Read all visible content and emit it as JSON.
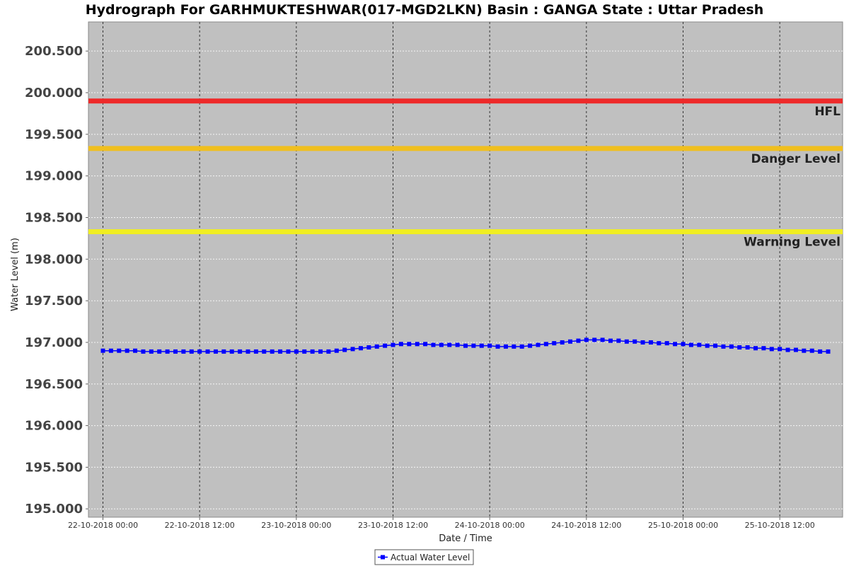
{
  "chart_data": {
    "type": "line",
    "title": "Hydrograph For GARHMUKTESHWAR(017-MGD2LKN) Basin : GANGA State : Uttar Pradesh",
    "xlabel": "Date / Time",
    "ylabel": "Water Level (m)",
    "ylim": [
      194.9,
      200.85
    ],
    "yticks": [
      195.0,
      195.5,
      196.0,
      196.5,
      197.0,
      197.5,
      198.0,
      198.5,
      199.0,
      199.5,
      200.0,
      200.5
    ],
    "ytick_labels": [
      "195.000",
      "195.500",
      "196.000",
      "196.500",
      "197.000",
      "197.500",
      "198.000",
      "198.500",
      "199.000",
      "199.500",
      "200.000",
      "200.500"
    ],
    "xlim_hours": [
      -1.8,
      91.8
    ],
    "x_start": "22-10-2018 00:00",
    "xticks_hours": [
      0,
      12,
      24,
      36,
      48,
      60,
      72,
      84
    ],
    "xtick_labels": [
      "22-10-2018 00:00",
      "22-10-2018 12:00",
      "23-10-2018 00:00",
      "23-10-2018 12:00",
      "24-10-2018 00:00",
      "24-10-2018 12:00",
      "25-10-2018 00:00",
      "25-10-2018 12:00"
    ],
    "grid": true,
    "background": "#c0c0c0",
    "reference_lines": [
      {
        "name": "HFL",
        "value": 199.9,
        "color": "#ee2a2a"
      },
      {
        "name": "Danger Level",
        "value": 199.33,
        "color": "#f0bf1e"
      },
      {
        "name": "Warning Level",
        "value": 198.33,
        "color": "#f0ee22"
      }
    ],
    "series": [
      {
        "name": "Actual Water Level",
        "color": "#0000ff",
        "x_hours": [
          0,
          1,
          2,
          3,
          4,
          5,
          6,
          7,
          8,
          9,
          10,
          11,
          12,
          13,
          14,
          15,
          16,
          17,
          18,
          19,
          20,
          21,
          22,
          23,
          24,
          25,
          26,
          27,
          28,
          29,
          30,
          31,
          32,
          33,
          34,
          35,
          36,
          37,
          38,
          39,
          40,
          41,
          42,
          43,
          44,
          45,
          46,
          47,
          48,
          49,
          50,
          51,
          52,
          53,
          54,
          55,
          56,
          57,
          58,
          59,
          60,
          61,
          62,
          63,
          64,
          65,
          66,
          67,
          68,
          69,
          70,
          71,
          72,
          73,
          74,
          75,
          76,
          77,
          78,
          79,
          80,
          81,
          82,
          83,
          84,
          85,
          86,
          87,
          88,
          89,
          90
        ],
        "values": [
          196.9,
          196.9,
          196.9,
          196.9,
          196.9,
          196.89,
          196.89,
          196.89,
          196.89,
          196.89,
          196.89,
          196.89,
          196.89,
          196.89,
          196.89,
          196.89,
          196.89,
          196.89,
          196.89,
          196.89,
          196.89,
          196.89,
          196.89,
          196.89,
          196.89,
          196.89,
          196.89,
          196.89,
          196.89,
          196.9,
          196.91,
          196.92,
          196.93,
          196.94,
          196.95,
          196.96,
          196.97,
          196.98,
          196.98,
          196.98,
          196.98,
          196.97,
          196.97,
          196.97,
          196.97,
          196.96,
          196.96,
          196.96,
          196.96,
          196.95,
          196.95,
          196.95,
          196.95,
          196.96,
          196.97,
          196.98,
          196.99,
          197.0,
          197.01,
          197.02,
          197.03,
          197.03,
          197.03,
          197.02,
          197.02,
          197.01,
          197.01,
          197.0,
          197.0,
          196.99,
          196.99,
          196.98,
          196.98,
          196.97,
          196.97,
          196.96,
          196.96,
          196.95,
          196.95,
          196.94,
          196.94,
          196.93,
          196.93,
          196.92,
          196.92,
          196.91,
          196.91,
          196.9,
          196.9,
          196.89,
          196.89
        ]
      }
    ],
    "legend": "bottom-center"
  }
}
